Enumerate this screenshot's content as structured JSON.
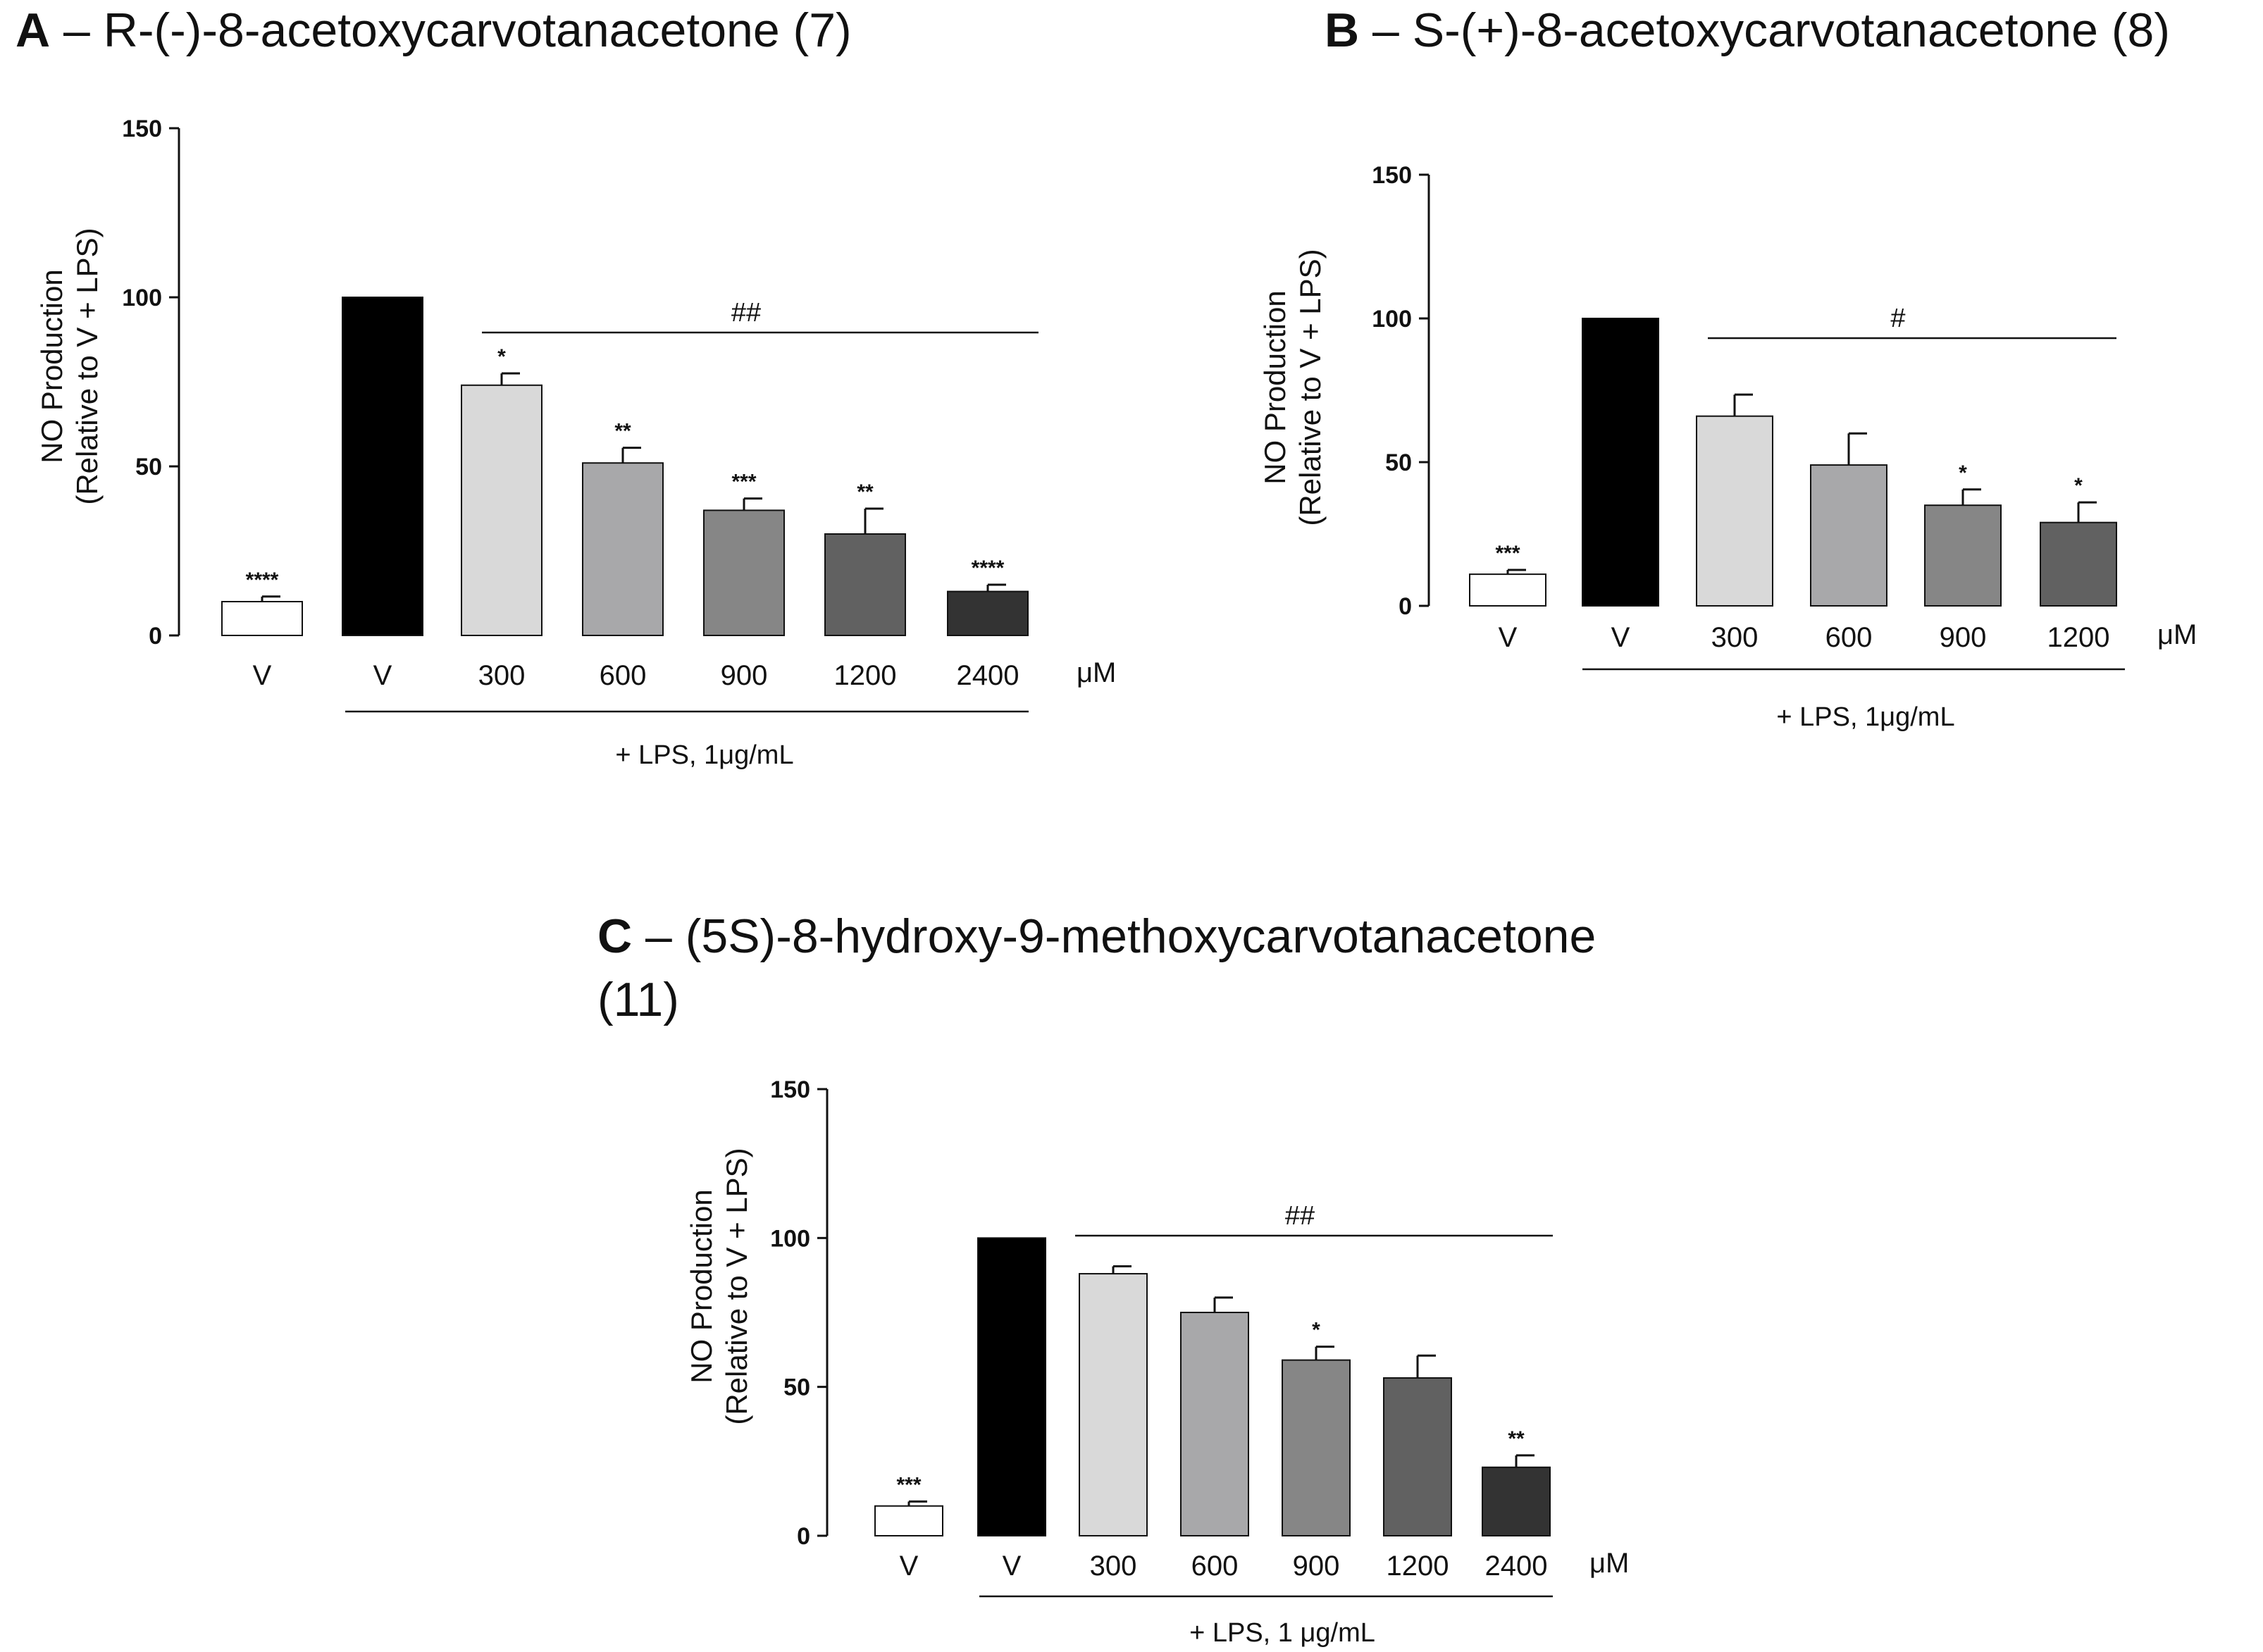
{
  "chart_data": [
    {
      "id": "A",
      "type": "bar",
      "panel_letter": "A",
      "title": "– R-(-)-8-acetoxycarvotanacetone (7)",
      "ylabel_line1": "NO Production",
      "ylabel_line2": "(Relative to V + LPS)",
      "ylim": [
        0,
        150
      ],
      "yticks": [
        "0",
        "50",
        "100",
        "150"
      ],
      "categories": [
        "V",
        "V",
        "300",
        "600",
        "900",
        "1200",
        "2400"
      ],
      "values": [
        10,
        100,
        74,
        51,
        37,
        30,
        13
      ],
      "errors": [
        1.5,
        0,
        3.5,
        4.5,
        3.5,
        7.5,
        2
      ],
      "fills": [
        "#ffffff",
        "#000000",
        "#d9d9d9",
        "#a8a8aa",
        "#868686",
        "#616161",
        "#333333"
      ],
      "significance": [
        "****",
        "",
        "*",
        "**",
        "***",
        "**",
        "****"
      ],
      "hash_label": "##",
      "unit": "μM",
      "treatment_label": "+ LPS, 1μg/mL"
    },
    {
      "id": "B",
      "type": "bar",
      "panel_letter": "B",
      "title": "– S-(+)-8-acetoxycarvotanacetone (8)",
      "ylabel_line1": "NO Production",
      "ylabel_line2": "(Relative to V + LPS)",
      "ylim": [
        0,
        150
      ],
      "yticks": [
        "0",
        "50",
        "100",
        "150"
      ],
      "categories": [
        "V",
        "V",
        "300",
        "600",
        "900",
        "1200"
      ],
      "values": [
        11,
        100,
        66,
        49,
        35,
        29
      ],
      "errors": [
        1.5,
        0,
        7.5,
        11,
        5.5,
        7
      ],
      "fills": [
        "#ffffff",
        "#000000",
        "#d9d9d9",
        "#a8a8aa",
        "#868686",
        "#616161"
      ],
      "significance": [
        "***",
        "",
        "",
        "",
        "*",
        "*"
      ],
      "hash_label": "#",
      "unit": "μM",
      "treatment_label": "+ LPS, 1μg/mL"
    },
    {
      "id": "C",
      "type": "bar",
      "panel_letter": "C",
      "title": "– (5S)-8-hydroxy-9-methoxycarvotanacetone",
      "title_line2": "(11)",
      "ylabel_line1": "NO Production",
      "ylabel_line2": "(Relative to V + LPS)",
      "ylim": [
        0,
        150
      ],
      "yticks": [
        "0",
        "50",
        "100",
        "150"
      ],
      "categories": [
        "V",
        "V",
        "300",
        "600",
        "900",
        "1200",
        "2400"
      ],
      "values": [
        10,
        100,
        88,
        75,
        59,
        53,
        23
      ],
      "errors": [
        1.5,
        0,
        2.5,
        5,
        4.5,
        7.5,
        4
      ],
      "fills": [
        "#ffffff",
        "#000000",
        "#d9d9d9",
        "#a8a8aa",
        "#868686",
        "#616161",
        "#333333"
      ],
      "significance": [
        "***",
        "",
        "",
        "",
        "*",
        "",
        "**"
      ],
      "hash_label": "##",
      "unit": "μM",
      "treatment_label": "+ LPS, 1 μg/mL"
    }
  ]
}
